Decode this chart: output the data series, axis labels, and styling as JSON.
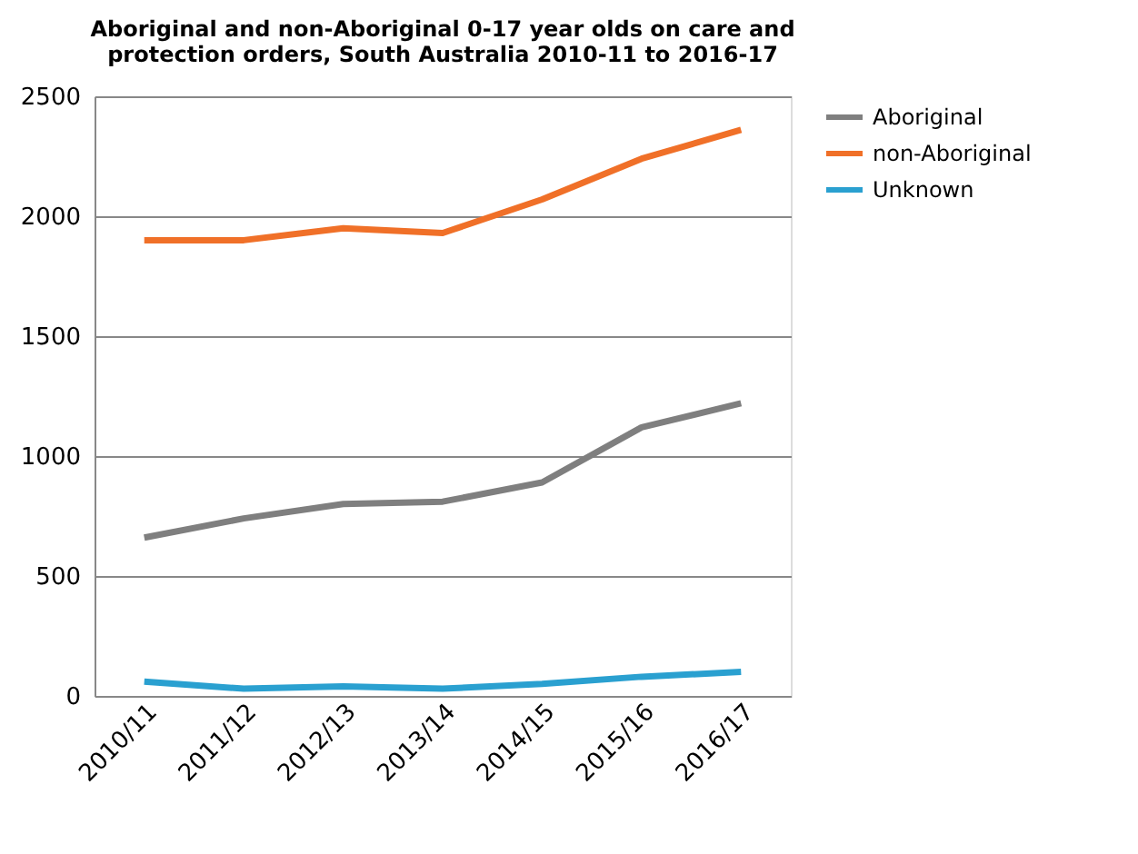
{
  "chart_data": {
    "type": "line",
    "title": [
      "Aboriginal and non-Aboriginal  0-17 year olds on care and",
      "protection orders, South Australia  2010-11 to 2016-17"
    ],
    "categories": [
      "2010/11",
      "2011/12",
      "2012/13",
      "2013/14",
      "2014/15",
      "2015/16",
      "2016/17"
    ],
    "series": [
      {
        "name": "Aboriginal",
        "color": "#7f7f7f",
        "values": [
          660,
          740,
          800,
          810,
          890,
          1120,
          1220
        ]
      },
      {
        "name": "non-Aboriginal",
        "color": "#f07028",
        "values": [
          1900,
          1900,
          1950,
          1930,
          2070,
          2240,
          2360
        ]
      },
      {
        "name": "Unknown",
        "color": "#2aa0d0",
        "values": [
          60,
          30,
          40,
          30,
          50,
          80,
          100
        ]
      }
    ],
    "ylim": [
      0,
      2500
    ],
    "yticks": [
      0,
      500,
      1000,
      1500,
      2000,
      2500
    ],
    "grid": "y",
    "legend": "right",
    "marker": "none",
    "line_style": "solid"
  }
}
